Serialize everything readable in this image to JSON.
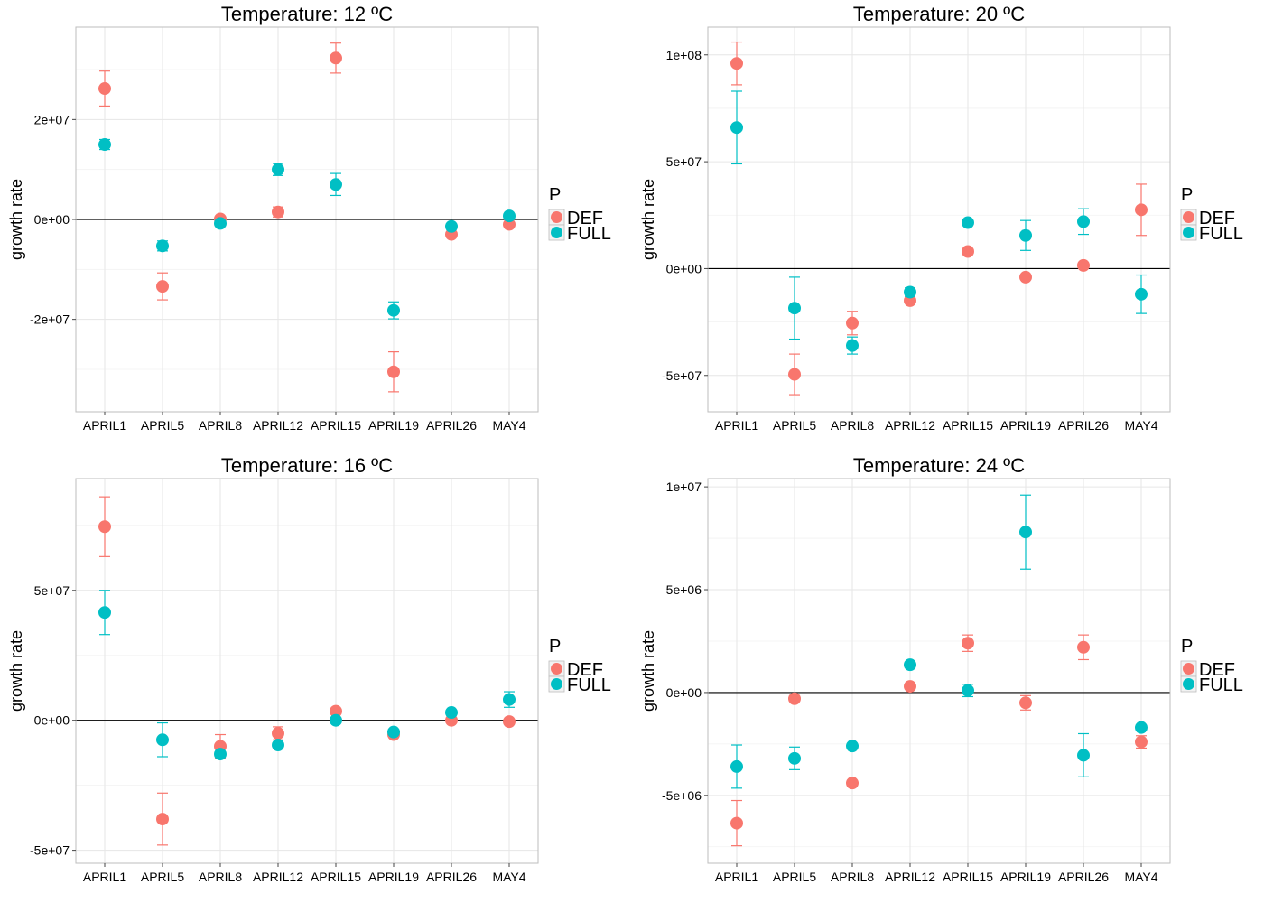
{
  "chart_data": [
    {
      "type": "scatter",
      "title": "Temperature: 12 ºC",
      "ylabel": "growth rate",
      "xlabel": "",
      "categories": [
        "APRIL1",
        "APRIL5",
        "APRIL8",
        "APRIL12",
        "APRIL15",
        "APRIL19",
        "APRIL26",
        "MAY4"
      ],
      "ylim": [
        -38500000,
        38500000
      ],
      "yticks": [
        -20000000,
        0,
        20000000
      ],
      "ytick_labels": [
        "-2e+07",
        "0e+00",
        "2e+07"
      ],
      "zero_line": true,
      "grid": true,
      "legend": {
        "title": "P",
        "position": "right",
        "entries": [
          "DEF",
          "FULL"
        ]
      },
      "series": [
        {
          "name": "DEF",
          "color": "#F8766D",
          "values": [
            26200000,
            -13400000,
            100000,
            1500000,
            32300000,
            -30500000,
            -3000000,
            -1000000
          ],
          "errors": [
            3500000,
            2700000,
            0,
            1000000,
            3000000,
            4000000,
            0,
            0
          ]
        },
        {
          "name": "FULL",
          "color": "#00BFC4",
          "values": [
            15000000,
            -5300000,
            -800000,
            10000000,
            7000000,
            -18200000,
            -1400000,
            700000
          ],
          "errors": [
            1000000,
            1000000,
            0,
            1200000,
            2200000,
            1700000,
            0,
            0
          ]
        }
      ]
    },
    {
      "type": "scatter",
      "title": "Temperature: 20 ºC",
      "ylabel": "growth rate",
      "xlabel": "",
      "categories": [
        "APRIL1",
        "APRIL5",
        "APRIL8",
        "APRIL12",
        "APRIL15",
        "APRIL19",
        "APRIL26",
        "MAY4"
      ],
      "ylim": [
        -67000000,
        113000000
      ],
      "yticks": [
        -50000000,
        0,
        50000000,
        100000000
      ],
      "ytick_labels": [
        "-5e+07",
        "0e+00",
        "5e+07",
        "1e+08"
      ],
      "zero_line": true,
      "grid": true,
      "legend": {
        "title": "P",
        "position": "right",
        "entries": [
          "DEF",
          "FULL"
        ]
      },
      "series": [
        {
          "name": "DEF",
          "color": "#F8766D",
          "values": [
            96000000,
            -49500000,
            -25500000,
            -15000000,
            8000000,
            -4000000,
            1500000,
            27500000
          ],
          "errors": [
            10000000,
            9500000,
            5500000,
            0,
            0,
            0,
            0,
            12000000
          ]
        },
        {
          "name": "FULL",
          "color": "#00BFC4",
          "values": [
            66000000,
            -18500000,
            -36000000,
            -11000000,
            21500000,
            15500000,
            22000000,
            -12000000
          ],
          "errors": [
            17000000,
            14500000,
            4000000,
            2000000,
            0,
            7000000,
            6000000,
            9000000
          ]
        }
      ]
    },
    {
      "type": "scatter",
      "title": "Temperature: 16 ºC",
      "ylabel": "growth rate",
      "xlabel": "",
      "categories": [
        "APRIL1",
        "APRIL5",
        "APRIL8",
        "APRIL12",
        "APRIL15",
        "APRIL19",
        "APRIL26",
        "MAY4"
      ],
      "ylim": [
        -55000000,
        93000000
      ],
      "yticks": [
        -50000000,
        0,
        50000000
      ],
      "ytick_labels": [
        "-5e+07",
        "0e+00",
        "5e+07"
      ],
      "zero_line": true,
      "grid": true,
      "legend": {
        "title": "P",
        "position": "right",
        "entries": [
          "DEF",
          "FULL"
        ]
      },
      "series": [
        {
          "name": "DEF",
          "color": "#F8766D",
          "values": [
            74500000,
            -38000000,
            -10000000,
            -5000000,
            3500000,
            -5500000,
            0,
            -500000
          ],
          "errors": [
            11500000,
            10000000,
            4500000,
            2500000,
            0,
            0,
            0,
            0
          ]
        },
        {
          "name": "FULL",
          "color": "#00BFC4",
          "values": [
            41500000,
            -7500000,
            -13000000,
            -9500000,
            0,
            -4500000,
            3000000,
            8000000
          ],
          "errors": [
            8500000,
            6500000,
            0,
            0,
            0,
            0,
            0,
            3000000
          ]
        }
      ]
    },
    {
      "type": "scatter",
      "title": "Temperature: 24 ºC",
      "ylabel": "growth rate",
      "xlabel": "",
      "categories": [
        "APRIL1",
        "APRIL5",
        "APRIL8",
        "APRIL12",
        "APRIL15",
        "APRIL19",
        "APRIL26",
        "MAY4"
      ],
      "ylim": [
        -8300000,
        10400000
      ],
      "yticks": [
        -5000000,
        0,
        5000000,
        10000000
      ],
      "ytick_labels": [
        "-5e+06",
        "0e+00",
        "5e+06",
        "1e+07"
      ],
      "zero_line": true,
      "grid": true,
      "legend": {
        "title": "P",
        "position": "right",
        "entries": [
          "DEF",
          "FULL"
        ]
      },
      "series": [
        {
          "name": "DEF",
          "color": "#F8766D",
          "values": [
            -6350000,
            -300000,
            -4400000,
            300000,
            2400000,
            -500000,
            2200000,
            -2400000
          ],
          "errors": [
            1100000,
            0,
            0,
            0,
            400000,
            350000,
            600000,
            300000
          ]
        },
        {
          "name": "FULL",
          "color": "#00BFC4",
          "values": [
            -3600000,
            -3200000,
            -2600000,
            1350000,
            100000,
            7800000,
            -3050000,
            -1700000
          ],
          "errors": [
            1050000,
            550000,
            0,
            0,
            300000,
            1800000,
            1050000,
            0
          ]
        }
      ]
    }
  ]
}
